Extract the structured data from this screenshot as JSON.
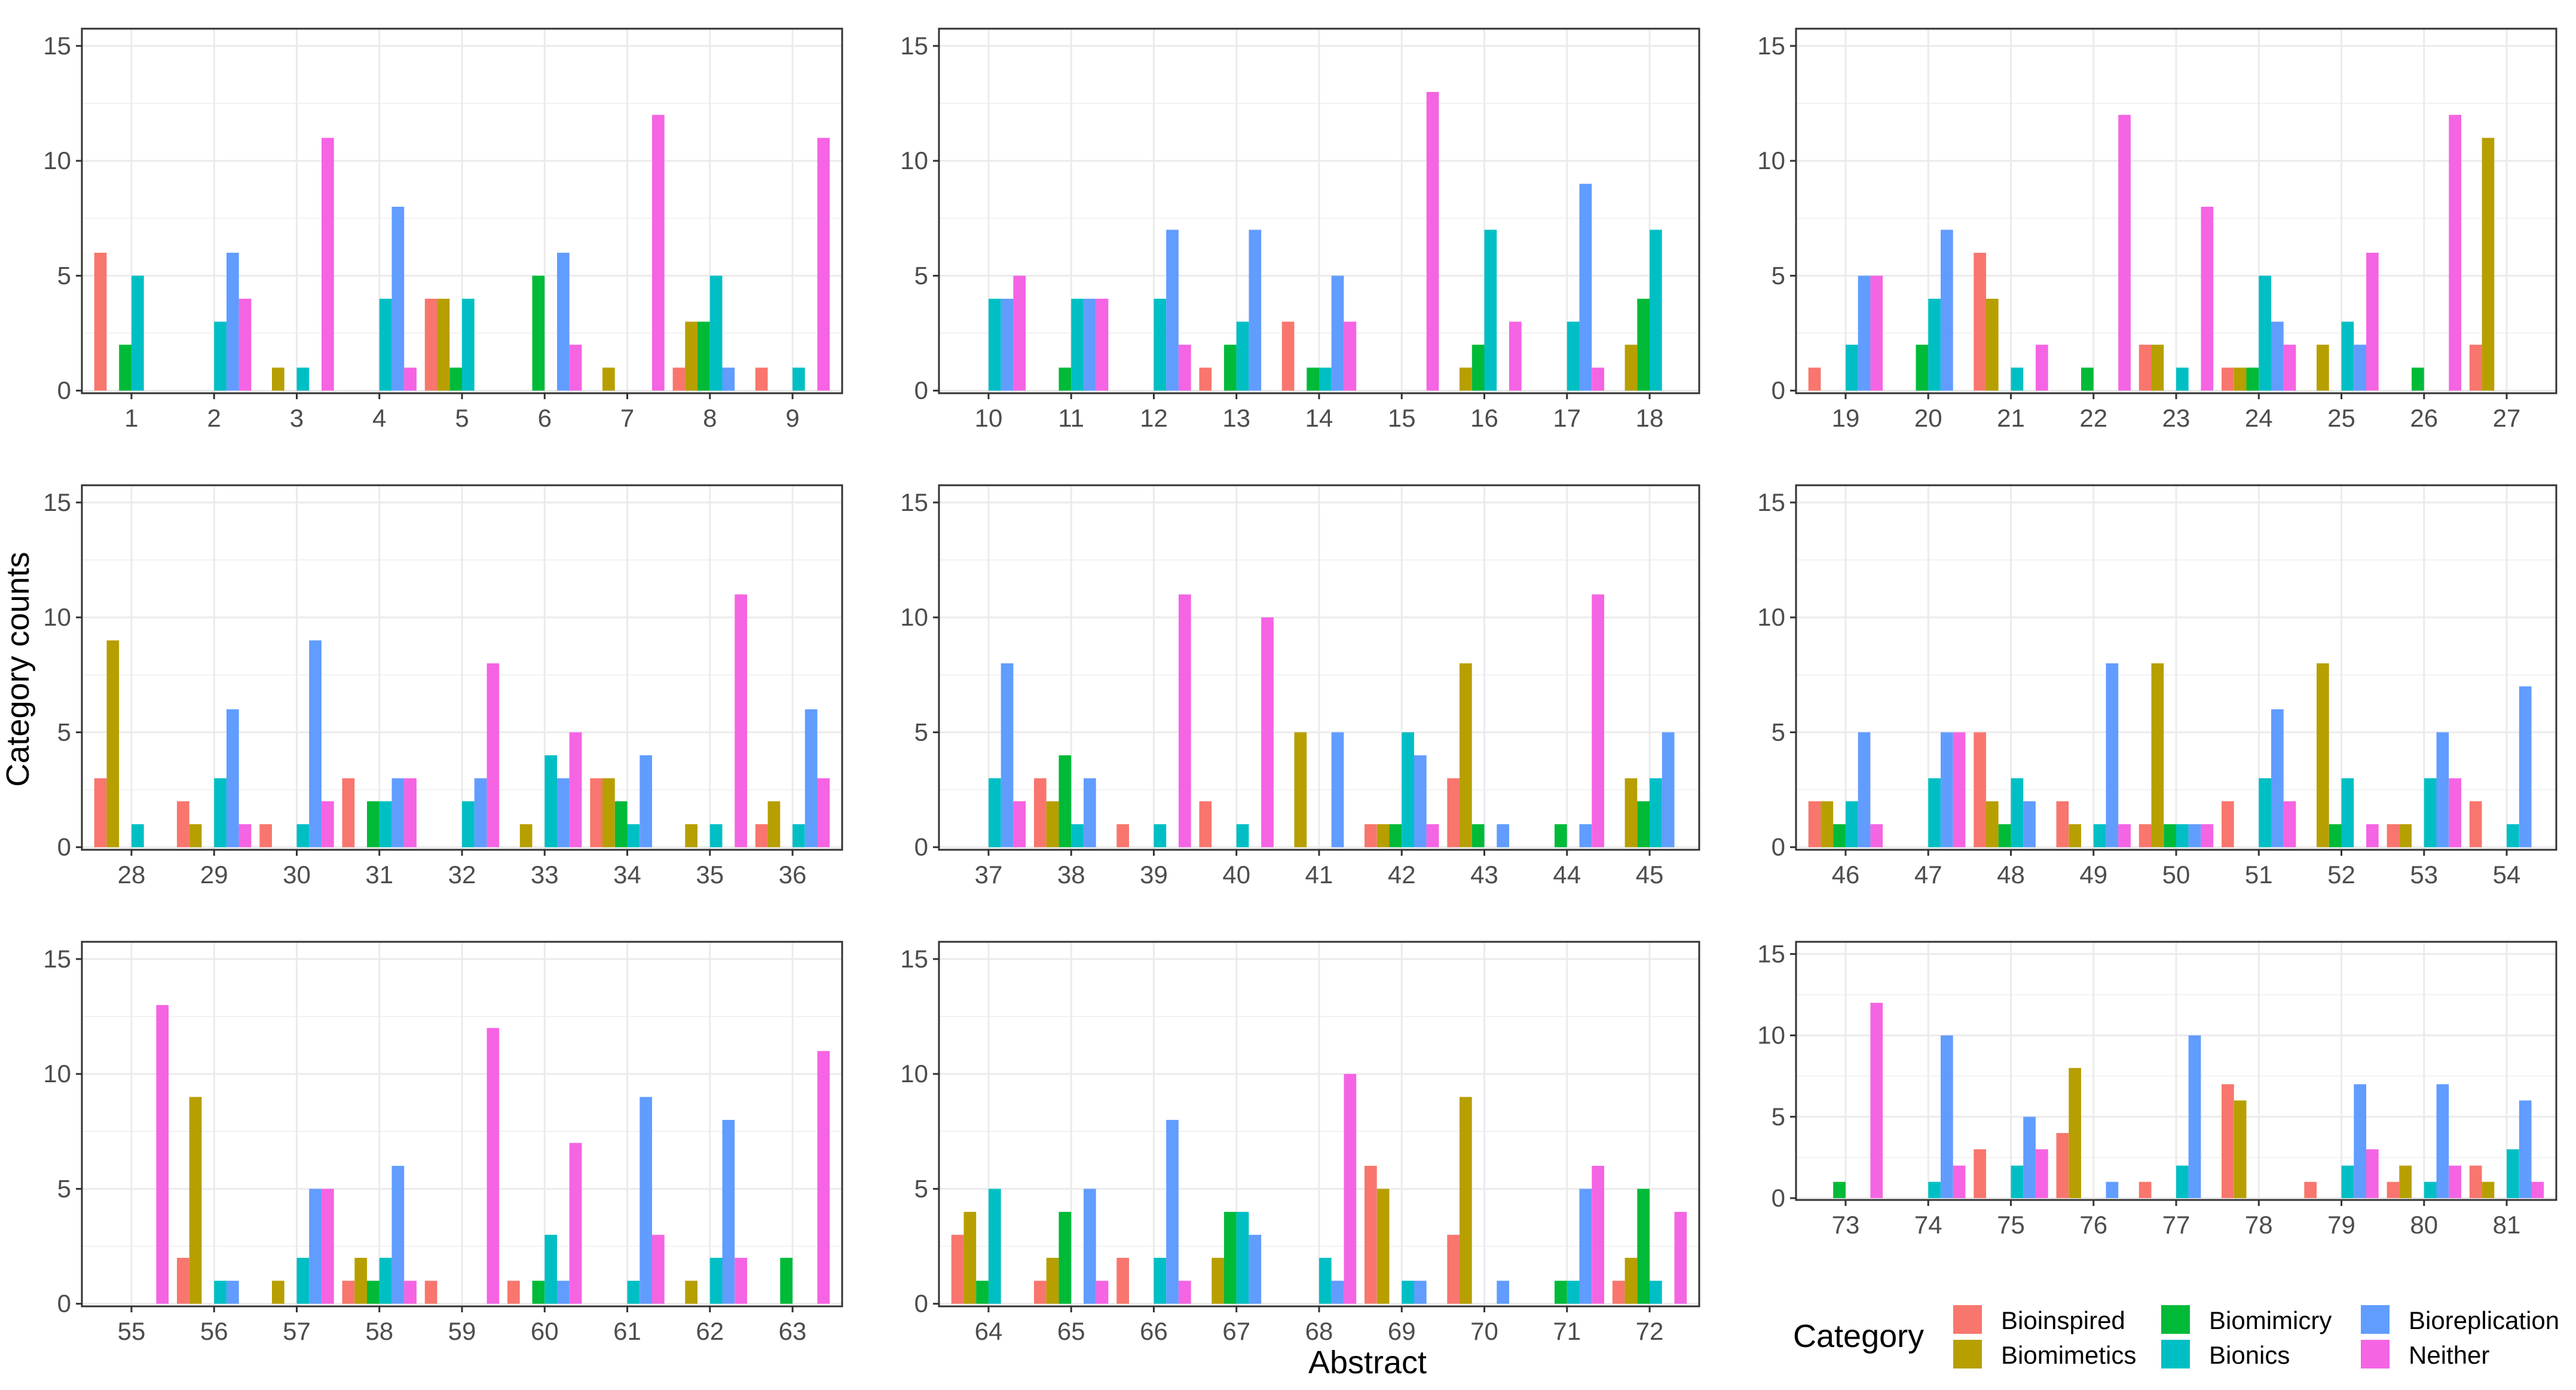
{
  "chart_data": {
    "type": "bar",
    "xlabel": "Abstract",
    "ylabel": "Category counts",
    "ylim": [
      0,
      15
    ],
    "yticks": [
      0,
      5,
      10,
      15
    ],
    "grid": true,
    "legend": {
      "title": "Category",
      "placement": "bottom-right",
      "entries": [
        "Bioinspired",
        "Biomimetics",
        "Biomimicry",
        "Bionics",
        "Bioreplication",
        "Neither"
      ]
    },
    "series_colors": {
      "Bioinspired": "#F8766D",
      "Biomimetics": "#B79F00",
      "Biomimicry": "#00BA38",
      "Bionics": "#00BFC4",
      "Bioreplication": "#619CFF",
      "Neither": "#F564E3"
    },
    "series_order": [
      "Bioinspired",
      "Biomimetics",
      "Biomimicry",
      "Bionics",
      "Bioreplication",
      "Neither"
    ],
    "panels": [
      {
        "abstracts": [
          {
            "label": "1",
            "values": [
              6,
              0,
              2,
              5,
              0,
              0
            ]
          },
          {
            "label": "2",
            "values": [
              0,
              0,
              0,
              3,
              6,
              4
            ]
          },
          {
            "label": "3",
            "values": [
              0,
              1,
              0,
              1,
              0,
              11
            ]
          },
          {
            "label": "4",
            "values": [
              0,
              0,
              0,
              4,
              8,
              1
            ]
          },
          {
            "label": "5",
            "values": [
              4,
              4,
              1,
              4,
              0,
              0
            ]
          },
          {
            "label": "6",
            "values": [
              0,
              0,
              5,
              0,
              6,
              2
            ]
          },
          {
            "label": "7",
            "values": [
              0,
              1,
              0,
              0,
              0,
              12
            ]
          },
          {
            "label": "8",
            "values": [
              1,
              3,
              3,
              5,
              1,
              0
            ]
          },
          {
            "label": "9",
            "values": [
              1,
              0,
              0,
              1,
              0,
              11
            ]
          }
        ]
      },
      {
        "abstracts": [
          {
            "label": "10",
            "values": [
              0,
              0,
              0,
              4,
              4,
              5
            ]
          },
          {
            "label": "11",
            "values": [
              0,
              0,
              1,
              4,
              4,
              4
            ]
          },
          {
            "label": "12",
            "values": [
              0,
              0,
              0,
              4,
              7,
              2
            ]
          },
          {
            "label": "13",
            "values": [
              1,
              0,
              2,
              3,
              7,
              0
            ]
          },
          {
            "label": "14",
            "values": [
              3,
              0,
              1,
              1,
              5,
              3
            ]
          },
          {
            "label": "15",
            "values": [
              0,
              0,
              0,
              0,
              0,
              13
            ]
          },
          {
            "label": "16",
            "values": [
              0,
              1,
              2,
              7,
              0,
              3
            ]
          },
          {
            "label": "17",
            "values": [
              0,
              0,
              0,
              3,
              9,
              1
            ]
          },
          {
            "label": "18",
            "values": [
              0,
              2,
              4,
              7,
              0,
              0
            ]
          }
        ]
      },
      {
        "abstracts": [
          {
            "label": "19",
            "values": [
              1,
              0,
              0,
              2,
              5,
              5
            ]
          },
          {
            "label": "20",
            "values": [
              0,
              0,
              2,
              4,
              7,
              0
            ]
          },
          {
            "label": "21",
            "values": [
              6,
              4,
              0,
              1,
              0,
              2
            ]
          },
          {
            "label": "22",
            "values": [
              0,
              0,
              1,
              0,
              0,
              12
            ]
          },
          {
            "label": "23",
            "values": [
              2,
              2,
              0,
              1,
              0,
              8
            ]
          },
          {
            "label": "24",
            "values": [
              1,
              1,
              1,
              5,
              3,
              2
            ]
          },
          {
            "label": "25",
            "values": [
              0,
              2,
              0,
              3,
              2,
              6
            ]
          },
          {
            "label": "26",
            "values": [
              0,
              0,
              1,
              0,
              0,
              12
            ]
          },
          {
            "label": "27",
            "values": [
              2,
              11,
              0,
              0,
              0,
              0
            ]
          }
        ]
      },
      {
        "abstracts": [
          {
            "label": "28",
            "values": [
              3,
              9,
              0,
              1,
              0,
              0
            ]
          },
          {
            "label": "29",
            "values": [
              2,
              1,
              0,
              3,
              6,
              1
            ]
          },
          {
            "label": "30",
            "values": [
              1,
              0,
              0,
              1,
              9,
              2
            ]
          },
          {
            "label": "31",
            "values": [
              3,
              0,
              2,
              2,
              3,
              3
            ]
          },
          {
            "label": "32",
            "values": [
              0,
              0,
              0,
              2,
              3,
              8
            ]
          },
          {
            "label": "33",
            "values": [
              0,
              1,
              0,
              4,
              3,
              5
            ]
          },
          {
            "label": "34",
            "values": [
              3,
              3,
              2,
              1,
              4,
              0
            ]
          },
          {
            "label": "35",
            "values": [
              0,
              1,
              0,
              1,
              0,
              11
            ]
          },
          {
            "label": "36",
            "values": [
              1,
              2,
              0,
              1,
              6,
              3
            ]
          }
        ]
      },
      {
        "abstracts": [
          {
            "label": "37",
            "values": [
              0,
              0,
              0,
              3,
              8,
              2
            ]
          },
          {
            "label": "38",
            "values": [
              3,
              2,
              4,
              1,
              3,
              0
            ]
          },
          {
            "label": "39",
            "values": [
              1,
              0,
              0,
              1,
              0,
              11
            ]
          },
          {
            "label": "40",
            "values": [
              2,
              0,
              0,
              1,
              0,
              10
            ]
          },
          {
            "label": "41",
            "values": [
              0,
              5,
              0,
              0,
              5,
              0
            ]
          },
          {
            "label": "42",
            "values": [
              1,
              1,
              1,
              5,
              4,
              1
            ]
          },
          {
            "label": "43",
            "values": [
              3,
              8,
              1,
              0,
              1,
              0
            ]
          },
          {
            "label": "44",
            "values": [
              0,
              0,
              1,
              0,
              1,
              11
            ]
          },
          {
            "label": "45",
            "values": [
              0,
              3,
              2,
              3,
              5,
              0
            ]
          }
        ]
      },
      {
        "abstracts": [
          {
            "label": "46",
            "values": [
              2,
              2,
              1,
              2,
              5,
              1
            ]
          },
          {
            "label": "47",
            "values": [
              0,
              0,
              0,
              3,
              5,
              5
            ]
          },
          {
            "label": "48",
            "values": [
              5,
              2,
              1,
              3,
              2,
              0
            ]
          },
          {
            "label": "49",
            "values": [
              2,
              1,
              0,
              1,
              8,
              1
            ]
          },
          {
            "label": "50",
            "values": [
              1,
              8,
              1,
              1,
              1,
              1
            ]
          },
          {
            "label": "51",
            "values": [
              2,
              0,
              0,
              3,
              6,
              2
            ]
          },
          {
            "label": "52",
            "values": [
              0,
              8,
              1,
              3,
              0,
              1
            ]
          },
          {
            "label": "53",
            "values": [
              1,
              1,
              0,
              3,
              5,
              3
            ]
          },
          {
            "label": "54",
            "values": [
              2,
              0,
              0,
              1,
              7,
              0
            ]
          }
        ]
      },
      {
        "abstracts": [
          {
            "label": "55",
            "values": [
              0,
              0,
              0,
              0,
              0,
              13
            ]
          },
          {
            "label": "56",
            "values": [
              2,
              9,
              0,
              1,
              1,
              0
            ]
          },
          {
            "label": "57",
            "values": [
              0,
              1,
              0,
              2,
              5,
              5
            ]
          },
          {
            "label": "58",
            "values": [
              1,
              2,
              1,
              2,
              6,
              1
            ]
          },
          {
            "label": "59",
            "values": [
              1,
              0,
              0,
              0,
              0,
              12
            ]
          },
          {
            "label": "60",
            "values": [
              1,
              0,
              1,
              3,
              1,
              7
            ]
          },
          {
            "label": "61",
            "values": [
              0,
              0,
              0,
              1,
              9,
              3
            ]
          },
          {
            "label": "62",
            "values": [
              0,
              1,
              0,
              2,
              8,
              2
            ]
          },
          {
            "label": "63",
            "values": [
              0,
              0,
              2,
              0,
              0,
              11
            ]
          }
        ]
      },
      {
        "abstracts": [
          {
            "label": "64",
            "values": [
              3,
              4,
              1,
              5,
              0,
              0
            ]
          },
          {
            "label": "65",
            "values": [
              1,
              2,
              4,
              0,
              5,
              1
            ]
          },
          {
            "label": "66",
            "values": [
              2,
              0,
              0,
              2,
              8,
              1
            ]
          },
          {
            "label": "67",
            "values": [
              0,
              2,
              4,
              4,
              3,
              0
            ]
          },
          {
            "label": "68",
            "values": [
              0,
              0,
              0,
              2,
              1,
              10
            ]
          },
          {
            "label": "69",
            "values": [
              6,
              5,
              0,
              1,
              1,
              0
            ]
          },
          {
            "label": "70",
            "values": [
              3,
              9,
              0,
              0,
              1,
              0
            ]
          },
          {
            "label": "71",
            "values": [
              0,
              0,
              1,
              1,
              5,
              6
            ]
          },
          {
            "label": "72",
            "values": [
              1,
              2,
              5,
              1,
              0,
              4
            ]
          }
        ]
      },
      {
        "abstracts": [
          {
            "label": "73",
            "values": [
              0,
              0,
              1,
              0,
              0,
              12
            ]
          },
          {
            "label": "74",
            "values": [
              0,
              0,
              0,
              1,
              10,
              2
            ]
          },
          {
            "label": "75",
            "values": [
              3,
              0,
              0,
              2,
              5,
              3
            ]
          },
          {
            "label": "76",
            "values": [
              4,
              8,
              0,
              0,
              1,
              0
            ]
          },
          {
            "label": "77",
            "values": [
              1,
              0,
              0,
              2,
              10,
              0
            ]
          },
          {
            "label": "78",
            "values": [
              7,
              6,
              0,
              0,
              0,
              0
            ]
          },
          {
            "label": "79",
            "values": [
              1,
              0,
              0,
              2,
              7,
              3
            ]
          },
          {
            "label": "80",
            "values": [
              1,
              2,
              0,
              1,
              7,
              2
            ]
          },
          {
            "label": "81",
            "values": [
              2,
              1,
              0,
              3,
              6,
              1
            ]
          }
        ]
      }
    ]
  }
}
